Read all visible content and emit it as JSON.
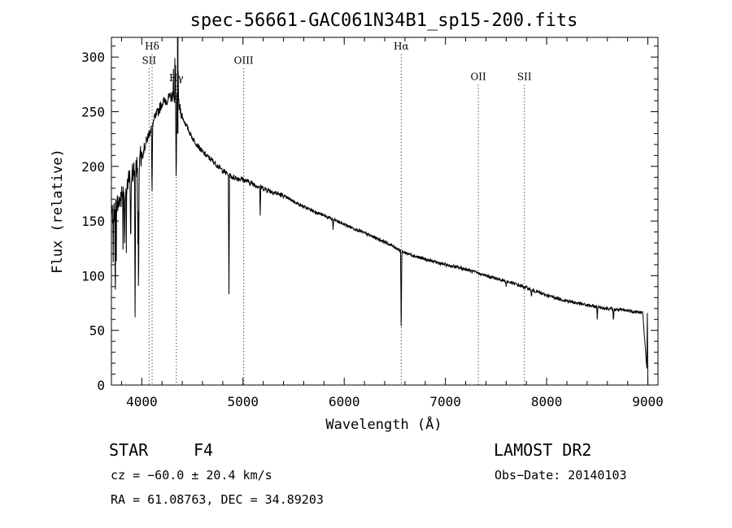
{
  "chart_data": {
    "type": "line",
    "title": "spec-56661-GAC061N34B1_sp15-200.fits",
    "xlabel": "Wavelength (Å)",
    "ylabel": "Flux (relative)",
    "xlim": [
      3700,
      9100
    ],
    "ylim": [
      0,
      318
    ],
    "xticks": [
      4000,
      5000,
      6000,
      7000,
      8000,
      9000
    ],
    "yticks": [
      0,
      50,
      100,
      150,
      200,
      250,
      300
    ],
    "grid": false,
    "series": [
      {
        "color": "#000000",
        "continuum": [
          [
            3700,
            155
          ],
          [
            3800,
            172
          ],
          [
            3900,
            192
          ],
          [
            4000,
            210
          ],
          [
            4100,
            238
          ],
          [
            4200,
            258
          ],
          [
            4300,
            264
          ],
          [
            4350,
            262
          ],
          [
            4400,
            245
          ],
          [
            4500,
            226
          ],
          [
            4600,
            213
          ],
          [
            4700,
            205
          ],
          [
            4800,
            196
          ],
          [
            4900,
            190
          ],
          [
            5000,
            188
          ],
          [
            5200,
            180
          ],
          [
            5400,
            173
          ],
          [
            5600,
            163
          ],
          [
            5800,
            155
          ],
          [
            6000,
            147
          ],
          [
            6200,
            139
          ],
          [
            6400,
            131
          ],
          [
            6600,
            121
          ],
          [
            6800,
            115
          ],
          [
            7000,
            110
          ],
          [
            7200,
            106
          ],
          [
            7400,
            100
          ],
          [
            7600,
            95
          ],
          [
            7800,
            89
          ],
          [
            8000,
            82
          ],
          [
            8200,
            77
          ],
          [
            8400,
            73
          ],
          [
            8600,
            70
          ],
          [
            8800,
            68
          ],
          [
            8950,
            66
          ],
          [
            9000,
            0
          ]
        ],
        "absorption_lines": [
          [
            3830,
            120
          ],
          [
            3890,
            130
          ],
          [
            3934,
            62
          ],
          [
            3968,
            68
          ],
          [
            4101,
            165
          ],
          [
            4340,
            177
          ],
          [
            4861,
            83
          ],
          [
            5170,
            155
          ],
          [
            5890,
            142
          ],
          [
            6563,
            40
          ],
          [
            7600,
            90
          ],
          [
            7850,
            80
          ],
          [
            8500,
            60
          ],
          [
            8660,
            58
          ]
        ]
      }
    ],
    "line_markers": [
      {
        "label": "Hδ",
        "wavelength": 4102,
        "label_flux": 307
      },
      {
        "label": "SII",
        "wavelength": 4072,
        "label_flux": 294
      },
      {
        "label": "Hγ",
        "wavelength": 4341,
        "label_flux": 278
      },
      {
        "label": "OIII",
        "wavelength": 5007,
        "label_flux": 294
      },
      {
        "label": "Hα",
        "wavelength": 6563,
        "label_flux": 307
      },
      {
        "label": "OII",
        "wavelength": 7325,
        "label_flux": 279
      },
      {
        "label": "SII",
        "wavelength": 7780,
        "label_flux": 279
      }
    ]
  },
  "info": {
    "class": "STAR",
    "subclass": "F4",
    "release": "LAMOST DR2",
    "cz": "cz = −60.0 ± 20.4 km/s",
    "obs_date": "Obs−Date: 20140103",
    "radec": "RA =  61.08763, DEC =  34.89203"
  }
}
